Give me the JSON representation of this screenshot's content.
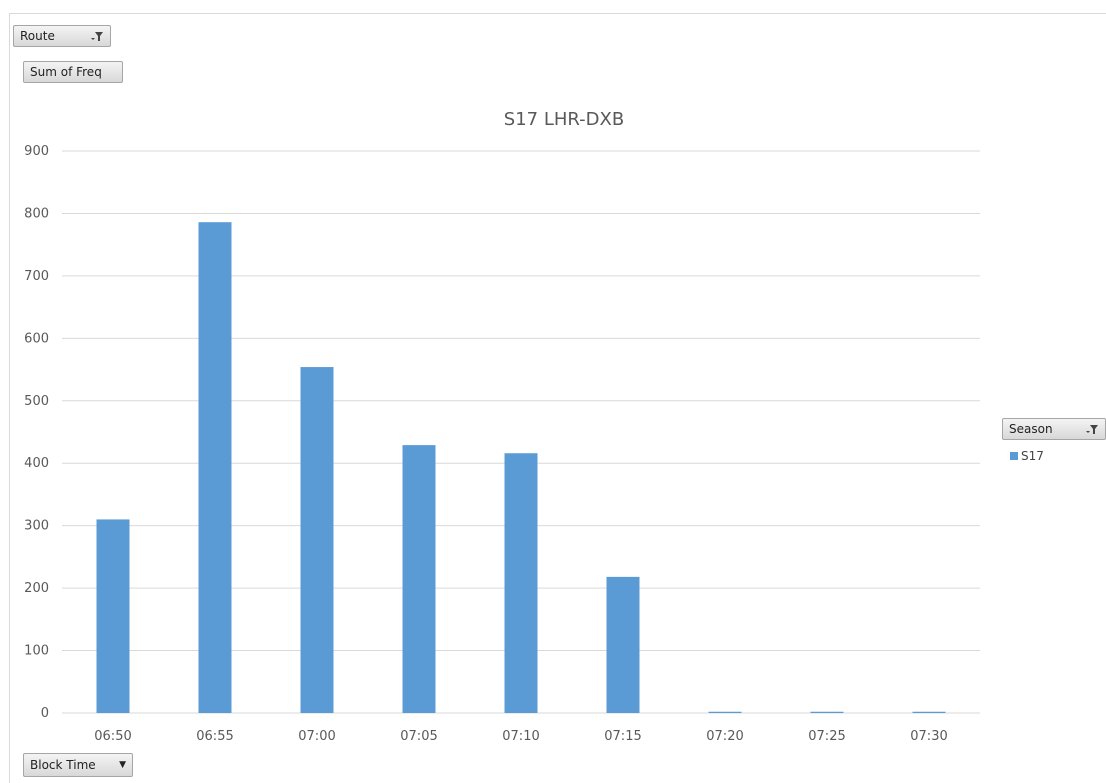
{
  "field_buttons": {
    "route": "Route",
    "values": "Sum of Freq",
    "legend_field": "Season",
    "axis_field": "Block Time"
  },
  "icons": {
    "filter": "filter-funnel-icon",
    "dropdown": "dropdown-arrow-icon"
  },
  "colors": {
    "bar": "#5b9bd5",
    "grid": "#d9d9d9",
    "text": "#595959"
  },
  "chart_data": {
    "type": "bar",
    "title": "S17 LHR-DXB",
    "categories": [
      "06:50",
      "06:55",
      "07:00",
      "07:05",
      "07:10",
      "07:15",
      "07:20",
      "07:25",
      "07:30"
    ],
    "series": [
      {
        "name": "S17",
        "values": [
          310,
          786,
          554,
          429,
          416,
          218,
          2,
          2,
          2
        ]
      }
    ],
    "ylim": [
      0,
      900
    ],
    "yticks": [
      0,
      100,
      200,
      300,
      400,
      500,
      600,
      700,
      800,
      900
    ],
    "grid": true,
    "legend": "right"
  }
}
